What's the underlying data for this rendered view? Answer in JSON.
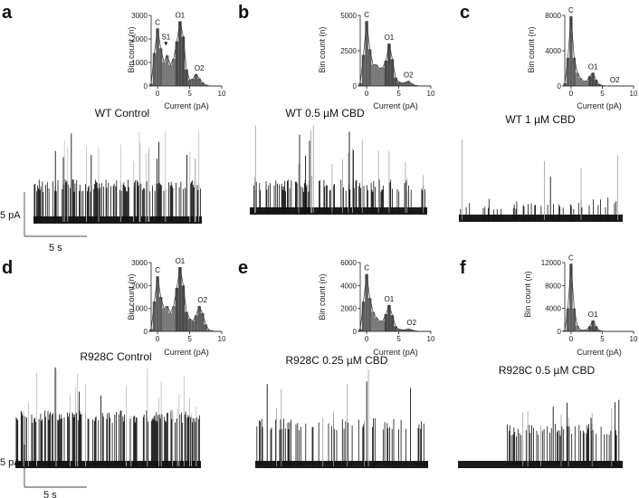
{
  "figure": {
    "axis_labels": {
      "x": "Current (pA)",
      "y": "Bin count (n)"
    },
    "scale_bar": {
      "current": "5 pA",
      "time": "5 s"
    },
    "panels": [
      {
        "id": "a",
        "label": "a",
        "trace_title": "WT Control",
        "y_ticks": [
          "0",
          "1000",
          "2000",
          "3000"
        ],
        "x_ticks": [
          "0",
          "5",
          "10"
        ],
        "peaks": [
          "C",
          "S1",
          "O1",
          "O2"
        ]
      },
      {
        "id": "b",
        "label": "b",
        "trace_title": "WT  0.5 µM CBD",
        "y_ticks": [
          "0",
          "2500",
          "5000"
        ],
        "x_ticks": [
          "0",
          "5",
          "10"
        ],
        "peaks": [
          "C",
          "O1",
          "O2"
        ]
      },
      {
        "id": "c",
        "label": "c",
        "trace_title": "WT 1 µM CBD",
        "y_ticks": [
          "0",
          "4000",
          "8000"
        ],
        "x_ticks": [
          "0",
          "5",
          "10"
        ],
        "peaks": [
          "C",
          "O1",
          "O2"
        ]
      },
      {
        "id": "d",
        "label": "d",
        "trace_title": "R928C Control",
        "y_ticks": [
          "0",
          "1000",
          "2000",
          "3000"
        ],
        "x_ticks": [
          "0",
          "5",
          "10"
        ],
        "peaks": [
          "C",
          "O1",
          "O2"
        ]
      },
      {
        "id": "e",
        "label": "e",
        "trace_title": "R928C 0.25 µM CBD",
        "y_ticks": [
          "0",
          "2000",
          "4000",
          "6000"
        ],
        "x_ticks": [
          "0",
          "5",
          "10"
        ],
        "peaks": [
          "C",
          "O1",
          "O2"
        ]
      },
      {
        "id": "f",
        "label": "f",
        "trace_title": "R928C 0.5 µM CBD",
        "y_ticks": [
          "0",
          "4000",
          "8000",
          "12000"
        ],
        "x_ticks": [
          "0",
          "5",
          "10"
        ],
        "peaks": [
          "C",
          "O1"
        ]
      }
    ]
  },
  "chart_data": [
    {
      "type": "area",
      "panel": "a",
      "xlabel": "Current (pA)",
      "ylabel": "Bin count (n)",
      "xlim": [
        -1,
        10
      ],
      "ylim": [
        0,
        3000
      ],
      "series": [
        {
          "x": [
            -1,
            -0.5,
            0,
            0.5,
            1,
            1.5,
            2,
            2.5,
            3,
            3.5,
            4,
            4.5,
            5,
            5.5,
            6,
            6.5,
            7,
            7.5,
            8,
            9,
            10
          ],
          "values": [
            100,
            1400,
            2450,
            1600,
            1000,
            1300,
            900,
            1150,
            1900,
            2750,
            2100,
            700,
            250,
            300,
            500,
            320,
            150,
            50,
            10,
            0,
            0
          ]
        }
      ]
    },
    {
      "type": "area",
      "panel": "b",
      "xlabel": "Current (pA)",
      "ylabel": "Bin count (n)",
      "xlim": [
        -1,
        10
      ],
      "ylim": [
        0,
        5000
      ],
      "series": [
        {
          "x": [
            -1,
            -0.5,
            0,
            0.5,
            1,
            1.5,
            2,
            2.5,
            3,
            3.5,
            4,
            4.5,
            5,
            5.5,
            6,
            6.5,
            7,
            7.5,
            8,
            9,
            10
          ],
          "values": [
            200,
            2200,
            4600,
            2600,
            1500,
            1500,
            1250,
            1300,
            1800,
            3000,
            1900,
            600,
            300,
            220,
            250,
            350,
            180,
            60,
            20,
            0,
            0
          ]
        }
      ]
    },
    {
      "type": "area",
      "panel": "c",
      "xlabel": "Current (pA)",
      "ylabel": "Bin count (n)",
      "xlim": [
        -1,
        10
      ],
      "ylim": [
        0,
        8000
      ],
      "series": [
        {
          "x": [
            -1,
            -0.5,
            0,
            0.5,
            1,
            1.5,
            2,
            2.5,
            3,
            3.5,
            4,
            4.5,
            5,
            5.5,
            6,
            7,
            8,
            9,
            10
          ],
          "values": [
            300,
            3200,
            7900,
            3200,
            1500,
            900,
            550,
            550,
            1100,
            1500,
            700,
            200,
            60,
            30,
            20,
            10,
            0,
            0,
            0
          ]
        }
      ]
    },
    {
      "type": "area",
      "panel": "d",
      "xlabel": "Current (pA)",
      "ylabel": "Bin count (n)",
      "xlim": [
        -1,
        10
      ],
      "ylim": [
        0,
        3000
      ],
      "series": [
        {
          "x": [
            -1,
            -0.5,
            0,
            0.5,
            1,
            1.5,
            2,
            2.5,
            3,
            3.5,
            4,
            4.5,
            5,
            5.5,
            6,
            6.5,
            7,
            7.5,
            8,
            9,
            10
          ],
          "values": [
            100,
            1300,
            2400,
            1500,
            1000,
            1100,
            800,
            1100,
            1900,
            2800,
            2000,
            850,
            550,
            450,
            700,
            1100,
            800,
            300,
            60,
            0,
            0
          ]
        }
      ]
    },
    {
      "type": "area",
      "panel": "e",
      "xlabel": "Current (pA)",
      "ylabel": "Bin count (n)",
      "xlim": [
        -1,
        10
      ],
      "ylim": [
        0,
        6000
      ],
      "series": [
        {
          "x": [
            -1,
            -0.5,
            0,
            0.5,
            1,
            1.5,
            2,
            2.5,
            3,
            3.5,
            4,
            4.5,
            5,
            5.5,
            6,
            6.5,
            7,
            7.5,
            8,
            9,
            10
          ],
          "values": [
            200,
            2600,
            5000,
            2900,
            1700,
            1200,
            900,
            900,
            1500,
            2300,
            1400,
            450,
            200,
            150,
            140,
            220,
            150,
            50,
            20,
            0,
            0
          ]
        }
      ]
    },
    {
      "type": "area",
      "panel": "f",
      "xlabel": "Current (pA)",
      "ylabel": "Bin count (n)",
      "xlim": [
        -1,
        10
      ],
      "ylim": [
        0,
        12000
      ],
      "series": [
        {
          "x": [
            -1,
            -0.5,
            0,
            0.5,
            1,
            1.5,
            2,
            2.5,
            3,
            3.5,
            4,
            4.5,
            5,
            6,
            7,
            8,
            9,
            10
          ],
          "values": [
            200,
            4000,
            11800,
            4000,
            1000,
            300,
            200,
            300,
            900,
            1900,
            900,
            200,
            50,
            0,
            0,
            0,
            0,
            0
          ]
        }
      ]
    }
  ]
}
